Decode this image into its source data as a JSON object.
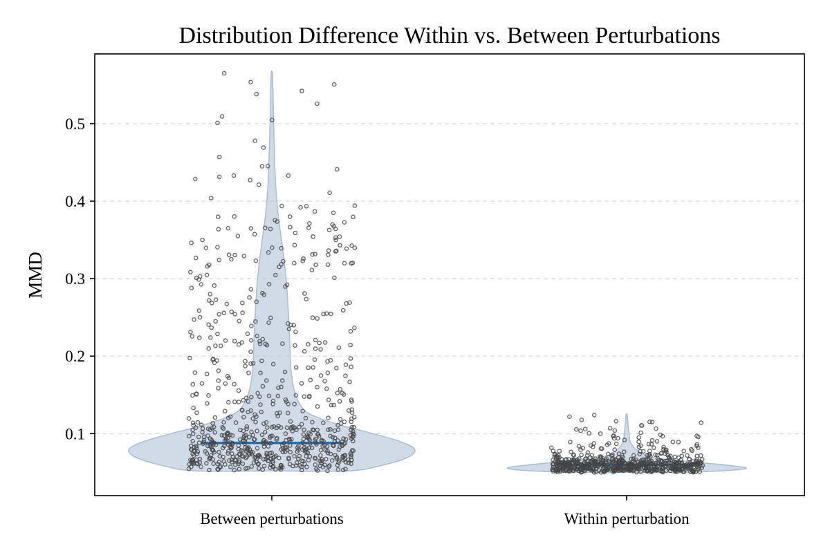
{
  "chart_data": {
    "type": "violin",
    "title": "Distribution Difference Within vs. Between Perturbations",
    "xlabel": "",
    "ylabel": "MMD",
    "ylim": [
      0.02,
      0.59
    ],
    "yticks": [
      "0.1",
      "0.2",
      "0.3",
      "0.4",
      "0.5"
    ],
    "ytick_values": [
      0.1,
      0.2,
      0.3,
      0.4,
      0.5
    ],
    "grid": "horizontal dashed",
    "categories": [
      "Between perturbations",
      "Within perturbation"
    ],
    "series": [
      {
        "category": "Between perturbations",
        "median": 0.088,
        "min": 0.052,
        "max": 0.565,
        "n_points_approx": 700,
        "density_profile": [
          [
            0.052,
            0.26
          ],
          [
            0.06,
            0.38
          ],
          [
            0.07,
            0.46
          ],
          [
            0.08,
            0.48
          ],
          [
            0.09,
            0.43
          ],
          [
            0.1,
            0.34
          ],
          [
            0.11,
            0.24
          ],
          [
            0.12,
            0.16
          ],
          [
            0.13,
            0.11
          ],
          [
            0.15,
            0.08
          ],
          [
            0.18,
            0.065
          ],
          [
            0.22,
            0.06
          ],
          [
            0.26,
            0.055
          ],
          [
            0.3,
            0.048
          ],
          [
            0.34,
            0.036
          ],
          [
            0.38,
            0.022
          ],
          [
            0.42,
            0.013
          ],
          [
            0.46,
            0.009
          ],
          [
            0.5,
            0.006
          ],
          [
            0.54,
            0.004
          ],
          [
            0.565,
            0.002
          ]
        ],
        "notable_values": [
          0.565,
          0.501,
          0.469,
          0.457,
          0.445,
          0.385,
          0.38,
          0.365,
          0.355,
          0.35,
          0.34,
          0.325,
          0.32,
          0.16,
          0.13
        ]
      },
      {
        "category": "Within perturbation",
        "median": 0.06,
        "min": 0.05,
        "max": 0.124,
        "n_points_approx": 600,
        "density_profile": [
          [
            0.05,
            0.18
          ],
          [
            0.053,
            0.36
          ],
          [
            0.056,
            0.4
          ],
          [
            0.06,
            0.32
          ],
          [
            0.065,
            0.18
          ],
          [
            0.07,
            0.08
          ],
          [
            0.08,
            0.03
          ],
          [
            0.09,
            0.012
          ],
          [
            0.1,
            0.008
          ],
          [
            0.11,
            0.005
          ],
          [
            0.124,
            0.002
          ]
        ],
        "notable_values": [
          0.124,
          0.122,
          0.115,
          0.107,
          0.104,
          0.1,
          0.095,
          0.063,
          0.053
        ]
      }
    ]
  }
}
